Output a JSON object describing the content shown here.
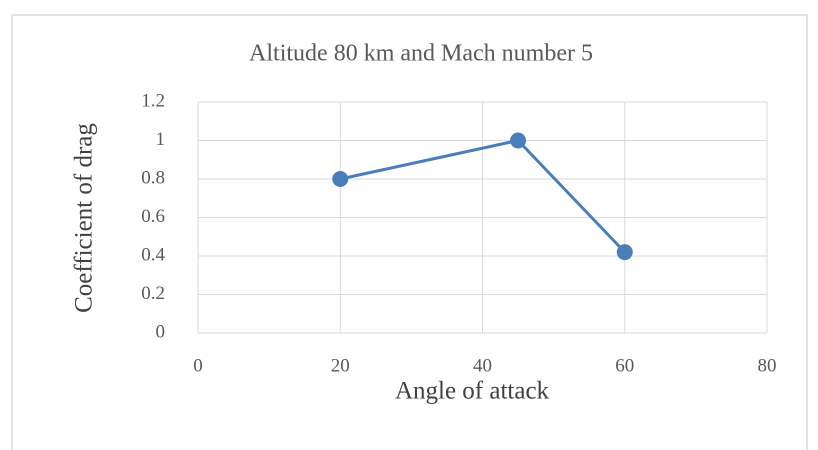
{
  "chart_data": {
    "type": "line",
    "title": "Altitude 80 km and Mach number 5",
    "x_label": "Angle of attack",
    "y_label": "Coefficient of drag",
    "x": [
      20,
      45,
      60
    ],
    "series": [
      {
        "color": "#4a7ebb",
        "values": [
          0.8,
          1,
          0.42
        ]
      }
    ],
    "xlim": [
      0,
      80
    ],
    "xticks": [
      0,
      20,
      40,
      60,
      80
    ],
    "ylim": [
      0,
      1.2
    ],
    "yticks": [
      0,
      0.2,
      0.4,
      0.6,
      0.8,
      1,
      1.2
    ],
    "grid": true
  }
}
